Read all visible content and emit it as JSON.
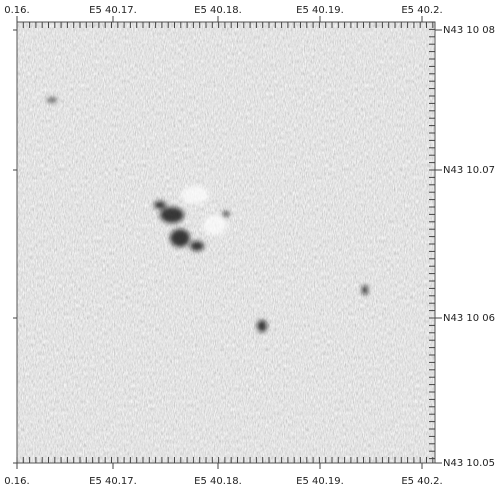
{
  "top_labels": [
    "0.16.",
    "E5 40.17.",
    "E5 40.18.",
    "E5 40.19.",
    "E5 40.2."
  ],
  "bottom_labels": [
    "0.16.",
    "E5 40.17.",
    "E5 40.18.",
    "E5 40.19.",
    "E5 40.2."
  ],
  "right_labels": [
    "N43 10 08",
    "N43 10.07",
    "N43 10 06",
    "N43 10.05"
  ]
}
